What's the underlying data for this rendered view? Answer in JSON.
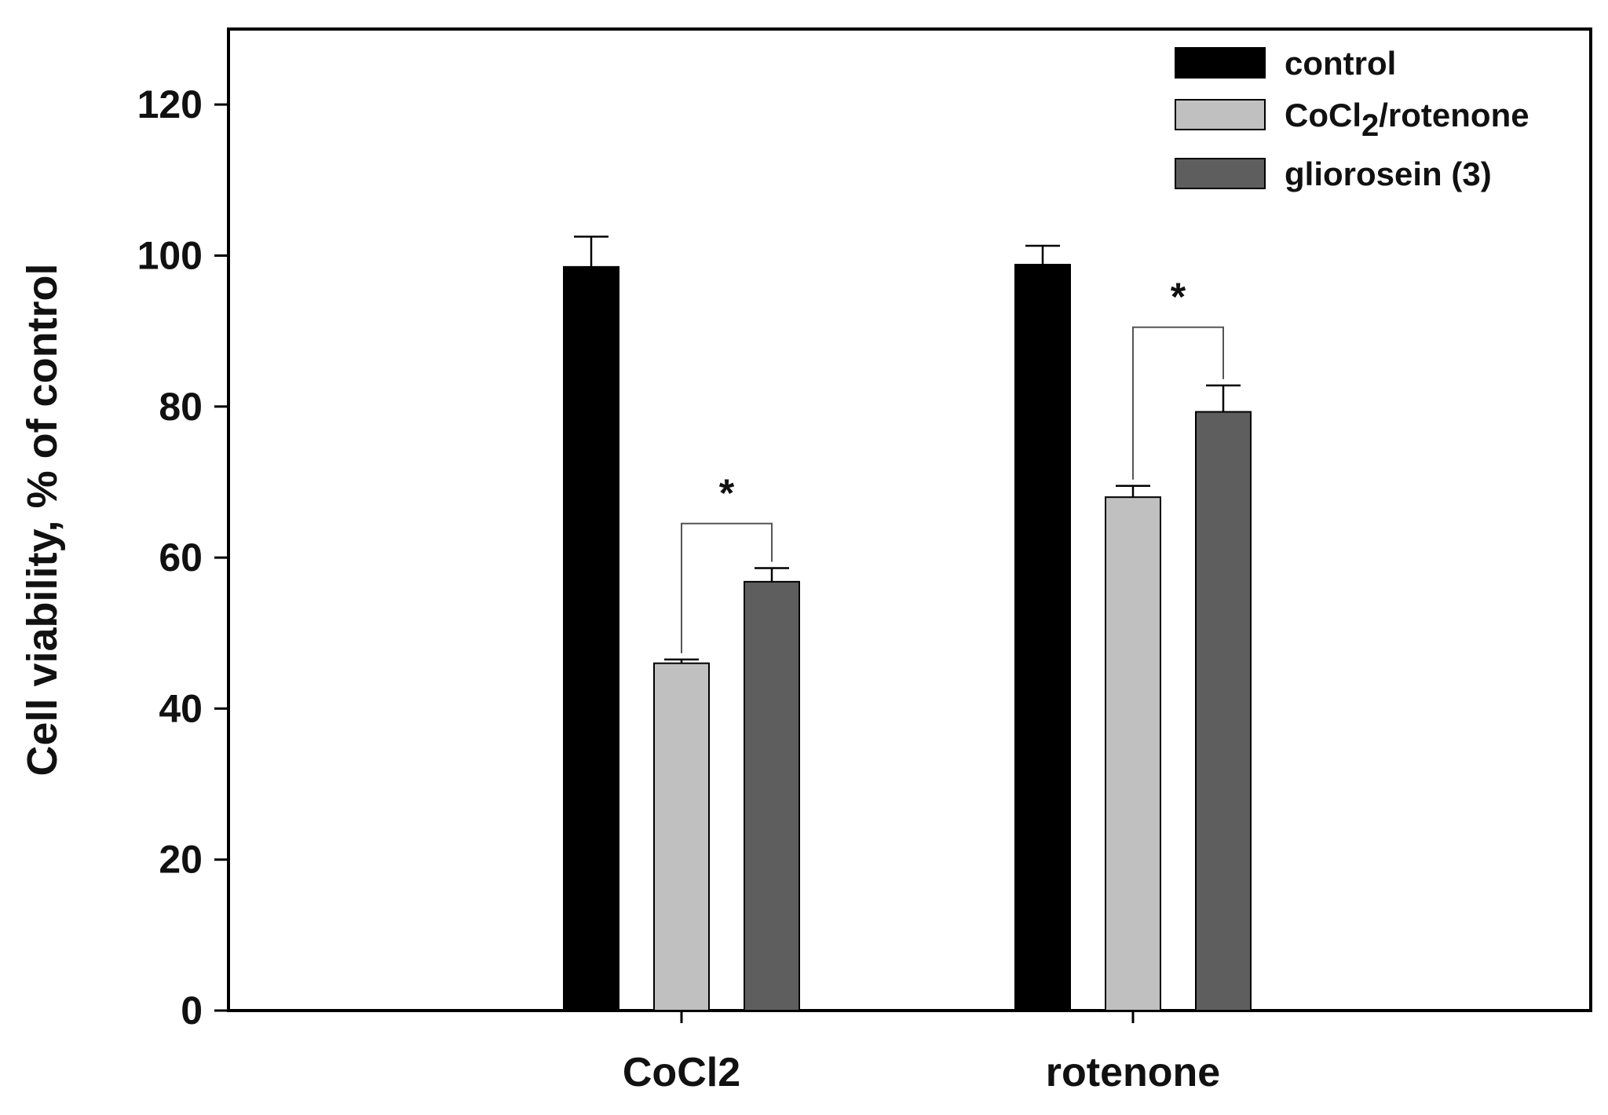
{
  "chart_data": {
    "type": "bar",
    "title": "",
    "xlabel": "",
    "ylabel": "Cell viability, % of control",
    "ylim": [
      0,
      130
    ],
    "yticks": [
      0,
      20,
      40,
      60,
      80,
      100,
      120
    ],
    "categories": [
      "CoCl2",
      "rotenone"
    ],
    "series": [
      {
        "name": "control",
        "legend_label": "control",
        "color": "#000000",
        "values": [
          98.5,
          98.8
        ],
        "errors": [
          4.0,
          2.5
        ]
      },
      {
        "name": "CoCl2/rotenone",
        "legend_label": "CoCl",
        "legend_sub": "2",
        "legend_suffix": "/rotenone",
        "color": "#c0c0c0",
        "values": [
          46.0,
          68.0
        ],
        "errors": [
          0.5,
          1.5
        ]
      },
      {
        "name": "gliorosein (3)",
        "legend_label": "gliorosein (3)",
        "color": "#5e5e5e",
        "values": [
          56.8,
          79.3
        ],
        "errors": [
          1.8,
          3.5
        ]
      }
    ],
    "significance": [
      {
        "category": "CoCl2",
        "from_series": 1,
        "to_series": 2,
        "bracket_y": 64.5,
        "label": "*"
      },
      {
        "category": "rotenone",
        "from_series": 1,
        "to_series": 2,
        "bracket_y": 90.5,
        "label": "*"
      }
    ],
    "legend": {
      "position": "top-right"
    },
    "grid": false
  }
}
